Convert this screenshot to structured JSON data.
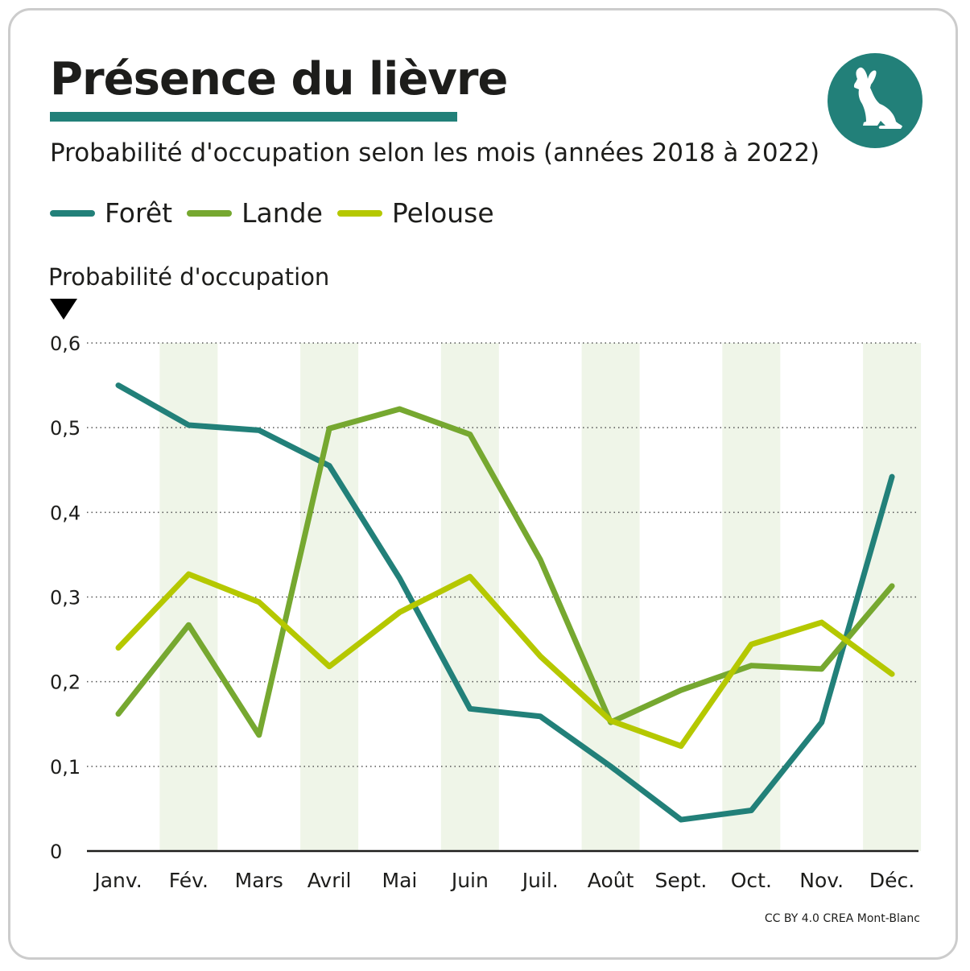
{
  "title": "Présence du lièvre",
  "subtitle": "Probabilité d'occupation selon les mois (années 2018 à 2022)",
  "credit": "CC BY 4.0 CREA Mont-Blanc",
  "colors": {
    "accent": "#228079",
    "foret": "#228079",
    "lande": "#76a830",
    "pelouse": "#b5c800",
    "band": "#eff5e8"
  },
  "chart_data": {
    "type": "line",
    "title": "Présence du lièvre",
    "ylabel": "Probabilité d'occupation",
    "xlabel": "",
    "ylim": [
      0,
      0.6
    ],
    "yticks": [
      "0",
      "0,1",
      "0,2",
      "0,3",
      "0,4",
      "0,5",
      "0,6"
    ],
    "categories": [
      "Janv.",
      "Fév.",
      "Mars",
      "Avril",
      "Mai",
      "Juin",
      "Juil.",
      "Août",
      "Sept.",
      "Oct.",
      "Nov.",
      "Déc."
    ],
    "legend_position": "top-left",
    "series": [
      {
        "name": "Forêt",
        "color": "#228079",
        "values": [
          0.55,
          0.503,
          0.497,
          0.455,
          0.322,
          0.168,
          0.159,
          0.1,
          0.037,
          0.048,
          0.152,
          0.442
        ]
      },
      {
        "name": "Lande",
        "color": "#76a830",
        "values": [
          0.162,
          0.267,
          0.137,
          0.499,
          0.522,
          0.492,
          0.344,
          0.152,
          0.19,
          0.219,
          0.215,
          0.313
        ]
      },
      {
        "name": "Pelouse",
        "color": "#b5c800",
        "values": [
          0.24,
          0.327,
          0.294,
          0.218,
          0.282,
          0.324,
          0.23,
          0.154,
          0.124,
          0.244,
          0.27,
          0.209
        ]
      }
    ]
  }
}
